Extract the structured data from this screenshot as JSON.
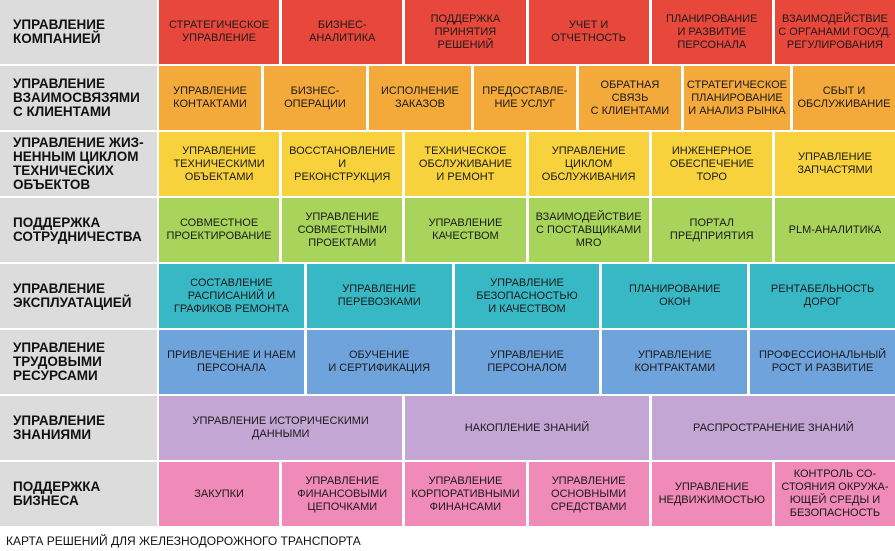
{
  "caption": "КАРТА РЕШЕНИЙ ДЛЯ ЖЕЛЕЗНОДОРОЖНОГО ТРАНСПОРТА",
  "rows": [
    {
      "title": "УПРАВЛЕНИЕ\nКОМПАНИЕЙ",
      "color": "#e8473c",
      "cells": [
        "СТРАТЕГИЧЕСКОЕ\nУПРАВЛЕНИЕ",
        "БИЗНЕС-АНАЛИТИКА",
        "ПОДДЕРЖКА\nПРИНЯТИЯ\nРЕШЕНИЙ",
        "УЧЕТ И\nОТЧЕТНОСТЬ",
        "ПЛАНИРОВАНИЕ\nИ РАЗВИТИЕ\nПЕРСОНАЛА",
        "ВЗАИМОДЕЙСТВИЕ\nС ОРГАНАМИ ГОСУД.\nРЕГУЛИРОВАНИЯ"
      ]
    },
    {
      "title": "УПРАВЛЕНИЕ\nВЗАИМОСВЯЗЯМИ\nС КЛИЕНТАМИ",
      "color": "#f4a93b",
      "cells": [
        "УПРАВЛЕНИЕ\nКОНТАКТАМИ",
        "БИЗНЕС-\nОПЕРАЦИИ",
        "ИСПОЛНЕНИЕ\nЗАКАЗОВ",
        "ПРЕДОСТАВЛЕ-\nНИЕ УСЛУГ",
        "ОБРАТНАЯ СВЯЗЬ\nС КЛИЕНТАМИ",
        "СТРАТЕГИЧЕСКОЕ\nПЛАНИРОВАНИЕ\nИ АНАЛИЗ РЫНКА",
        "СБЫТ И\nОБСЛУЖИВАНИЕ"
      ]
    },
    {
      "title": "УПРАВЛЕНИЕ ЖИЗ-\nНЕННЫМ ЦИКЛОМ\nТЕХНИЧЕСКИХ\nОБЪЕКТОВ",
      "color": "#f7d23c",
      "cells": [
        "УПРАВЛЕНИЕ\nТЕХНИЧЕСКИМИ\nОБЪЕКТАМИ",
        "ВОССТАНОВЛЕНИЕ И\nРЕКОНСТРУКЦИЯ",
        "ТЕХНИЧЕСКОЕ\nОБСЛУЖИВАНИЕ\nИ РЕМОНТ",
        "УПРАВЛЕНИЕ\nЦИКЛОМ\nОБСЛУЖИВАНИЯ",
        "ИНЖЕНЕРНОЕ\nОБЕСПЕЧЕНИЕ\nТОРО",
        "УПРАВЛЕНИЕ\nЗАПЧАСТЯМИ"
      ]
    },
    {
      "title": "ПОДДЕРЖКА\nСОТРУДНИЧЕСТВА",
      "color": "#a9d45c",
      "cells": [
        "СОВМЕСТНОЕ\nПРОЕКТИРОВАНИЕ",
        "УПРАВЛЕНИЕ\nСОВМЕСТНЫМИ\nПРОЕКТАМИ",
        "УПРАВЛЕНИЕ\nКАЧЕСТВОМ",
        "ВЗАИМОДЕЙСТВИЕ\nС ПОСТАВЩИКАМИ\nMRO",
        "ПОРТАЛ\nПРЕДПРИЯТИЯ",
        "PLM-АНАЛИТИКА"
      ]
    },
    {
      "title": "УПРАВЛЕНИЕ\nЭКСПЛУАТАЦИЕЙ",
      "color": "#38b8c4",
      "cells": [
        "СОСТАВЛЕНИЕ\nРАСПИСАНИЙ И\nГРАФИКОВ РЕМОНТА",
        "УПРАВЛЕНИЕ\nПЕРЕВОЗКАМИ",
        "УПРАВЛЕНИЕ\nБЕЗОПАСНОСТЬЮ\nИ КАЧЕСТВОМ",
        "ПЛАНИРОВАНИЕ\nОКОН",
        "РЕНТАБЕЛЬНОСТЬ\nДОРОГ"
      ]
    },
    {
      "title": "УПРАВЛЕНИЕ\nТРУДОВЫМИ\nРЕСУРСАМИ",
      "color": "#6fa3dc",
      "cells": [
        "ПРИВЛЕЧЕНИЕ И НАЕМ\nПЕРСОНАЛА",
        "ОБУЧЕНИЕ\nИ СЕРТИФИКАЦИЯ",
        "УПРАВЛЕНИЕ\nПЕРСОНАЛОМ",
        "УПРАВЛЕНИЕ\nКОНТРАКТАМИ",
        "ПРОФЕССИОНАЛЬНЫЙ\nРОСТ И РАЗВИТИЕ"
      ]
    },
    {
      "title": "УПРАВЛЕНИЕ\nЗНАНИЯМИ",
      "color": "#c3a6d3",
      "cells": [
        "УПРАВЛЕНИЕ ИСТОРИЧЕСКИМИ\nДАННЫМИ",
        "НАКОПЛЕНИЕ ЗНАНИЙ",
        "РАСПРОСТРАНЕНИЕ ЗНАНИЙ"
      ]
    },
    {
      "title": "ПОДДЕРЖКА\nБИЗНЕСА",
      "color": "#f08ab8",
      "cells": [
        "ЗАКУПКИ",
        "УПРАВЛЕНИЕ\nФИНАНСОВЫМИ\nЦЕПОЧКАМИ",
        "УПРАВЛЕНИЕ\nКОРПОРАТИВНЫМИ\nФИНАНСАМИ",
        "УПРАВЛЕНИЕ\nОСНОВНЫМИ\nСРЕДСТВАМИ",
        "УПРАВЛЕНИЕ\nНЕДВИЖИМОСТЬЮ",
        "КОНТРОЛЬ СО-\nСТОЯНИЯ ОКРУЖА-\nЮЩЕЙ СРЕДЫ И\nБЕЗОПАСНОСТЬ"
      ]
    }
  ]
}
